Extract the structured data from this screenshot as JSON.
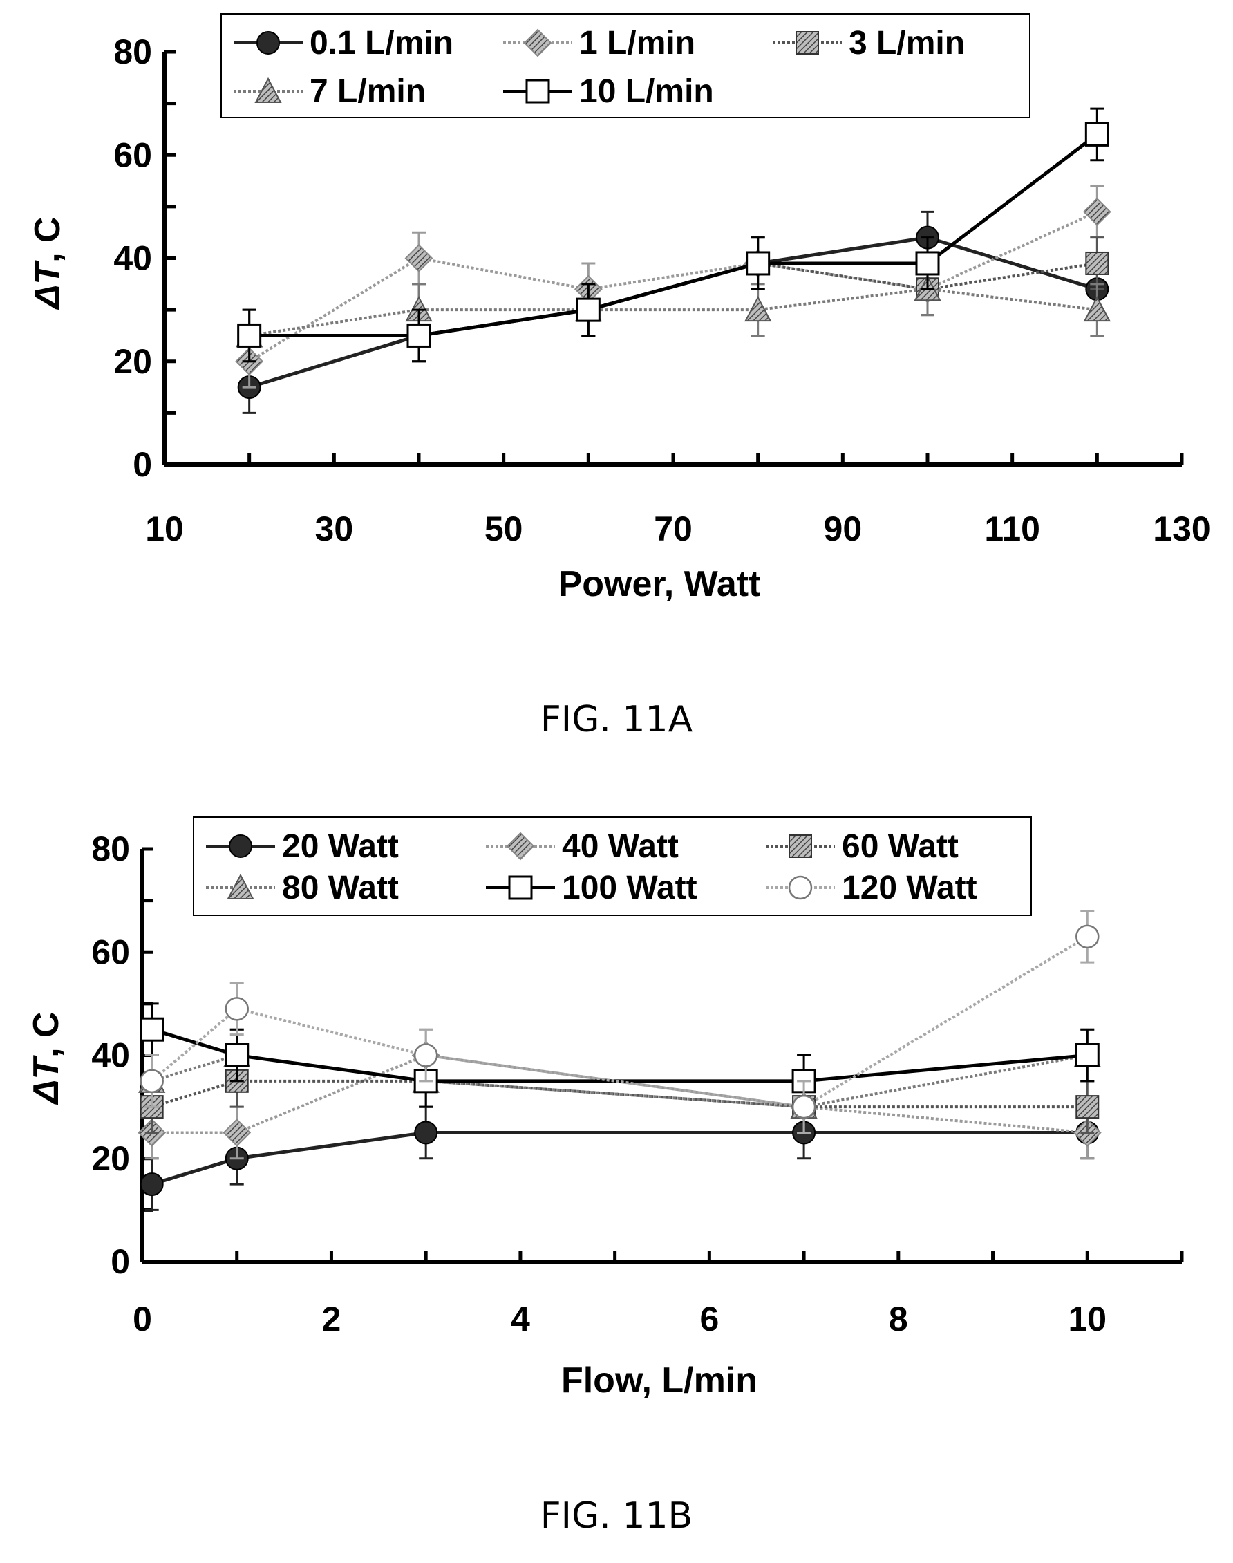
{
  "chart_data": [
    {
      "type": "line",
      "caption": "FIG. 11A",
      "xlabel": "Power, Watt",
      "ylabel_prefix": "ΔT",
      "ylabel_suffix": ", C",
      "xlim": [
        10,
        130
      ],
      "ylim": [
        0,
        80
      ],
      "xticks": [
        "10",
        "30",
        "50",
        "70",
        "90",
        "110",
        "130"
      ],
      "yticks": [
        "0",
        "20",
        "40",
        "60",
        "80"
      ],
      "legend": "top",
      "x": [
        20,
        40,
        60,
        80,
        100,
        120
      ],
      "error": 5,
      "series": [
        {
          "name": "0.1 L/min",
          "marker": "circle-filled",
          "style": "solid",
          "color": "#222222",
          "values": [
            15,
            25,
            30,
            39,
            44,
            34
          ]
        },
        {
          "name": "1 L/min",
          "marker": "diamond",
          "style": "dotted",
          "color": "#9a9a9a",
          "values": [
            20,
            40,
            34,
            39,
            34,
            49
          ]
        },
        {
          "name": "3 L/min",
          "marker": "square-hatched",
          "style": "dotted",
          "color": "#555555",
          "values": [
            25,
            25,
            30,
            39,
            34,
            39
          ]
        },
        {
          "name": "7 L/min",
          "marker": "triangle",
          "style": "dotted",
          "color": "#7a7a7a",
          "values": [
            25,
            30,
            30,
            30,
            34,
            30
          ]
        },
        {
          "name": "10 L/min",
          "marker": "square-open",
          "style": "solid",
          "color": "#000000",
          "values": [
            25,
            25,
            30,
            39,
            39,
            64
          ]
        }
      ]
    },
    {
      "type": "line",
      "caption": "FIG. 11B",
      "xlabel": "Flow, L/min",
      "ylabel_prefix": "ΔT",
      "ylabel_suffix": ", C",
      "xlim": [
        0,
        11
      ],
      "ylim": [
        0,
        80
      ],
      "xticks": [
        "0",
        "2",
        "4",
        "6",
        "8",
        "10"
      ],
      "yticks": [
        "0",
        "20",
        "40",
        "60",
        "80"
      ],
      "legend": "top",
      "x": [
        0.1,
        1,
        3,
        7,
        10
      ],
      "error": 5,
      "series": [
        {
          "name": "20 Watt",
          "marker": "circle-filled",
          "style": "solid",
          "color": "#222222",
          "values": [
            15,
            20,
            25,
            25,
            25
          ]
        },
        {
          "name": "40 Watt",
          "marker": "diamond",
          "style": "dotted",
          "color": "#9a9a9a",
          "values": [
            25,
            25,
            40,
            30,
            25
          ]
        },
        {
          "name": "60 Watt",
          "marker": "square-hatched",
          "style": "dotted",
          "color": "#555555",
          "values": [
            30,
            35,
            35,
            30,
            30
          ]
        },
        {
          "name": "80 Watt",
          "marker": "triangle",
          "style": "dotted",
          "color": "#7a7a7a",
          "values": [
            35,
            40,
            35,
            30,
            40
          ]
        },
        {
          "name": "100 Watt",
          "marker": "square-open",
          "style": "solid",
          "color": "#000000",
          "values": [
            45,
            40,
            35,
            35,
            40
          ]
        },
        {
          "name": "120 Watt",
          "marker": "circle-open",
          "style": "dotted",
          "color": "#a8a8a8",
          "values": [
            35,
            49,
            40,
            30,
            63
          ]
        }
      ]
    }
  ]
}
